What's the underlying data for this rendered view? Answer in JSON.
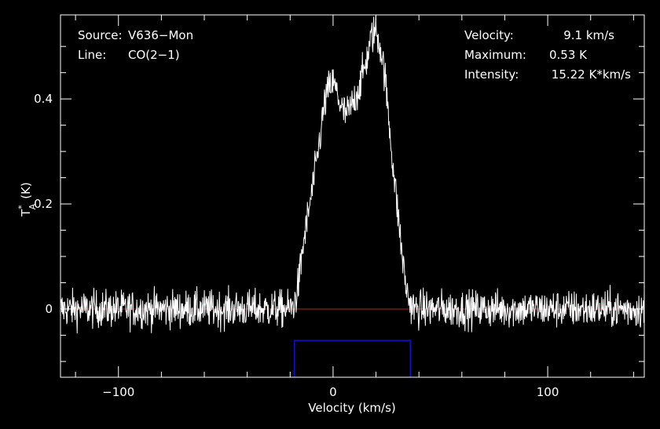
{
  "chart_data": {
    "type": "line",
    "xlabel": "Velocity (km/s)",
    "ylabel_main": "T",
    "ylabel_sup": "*",
    "ylabel_sub": "A",
    "ylabel_unit": "(K)",
    "xlim": [
      -127,
      145
    ],
    "ylim": [
      -0.13,
      0.56
    ],
    "x_ticks": [
      -100,
      0,
      100
    ],
    "x_tick_labels": [
      "−100",
      "0",
      "100"
    ],
    "y_ticks": [
      0,
      0.2,
      0.4
    ],
    "y_tick_labels": [
      "0",
      "0.2",
      "0.4"
    ],
    "baseline": 0,
    "window": {
      "x": [
        -18,
        36
      ],
      "y_top": -0.06
    },
    "series": [
      {
        "x": [
          -127,
          -110,
          -90,
          -70,
          -50,
          -30,
          -20,
          -18,
          -16,
          -14,
          -12,
          -10,
          -8,
          -6,
          -4,
          -2,
          0,
          2,
          4,
          6,
          8,
          10,
          12,
          14,
          16,
          18,
          20,
          22,
          24,
          26,
          28,
          30,
          32,
          34,
          36,
          38,
          40,
          60,
          80,
          100,
          120,
          145
        ],
        "values": [
          0,
          0,
          0,
          0,
          0,
          0,
          0,
          0.01,
          0.05,
          0.12,
          0.17,
          0.22,
          0.27,
          0.33,
          0.39,
          0.42,
          0.43,
          0.41,
          0.38,
          0.37,
          0.38,
          0.4,
          0.42,
          0.45,
          0.48,
          0.52,
          0.53,
          0.5,
          0.45,
          0.36,
          0.27,
          0.19,
          0.11,
          0.04,
          0.01,
          0,
          0,
          0,
          0,
          0,
          0,
          0
        ],
        "noise_rms": 0.025
      }
    ],
    "info_left": [
      {
        "key": "Source:",
        "value": "V636−Mon"
      },
      {
        "key": "Line:",
        "value": "CO(2−1)"
      }
    ],
    "info_right": [
      {
        "key": "Velocity:",
        "value": "9.1 km/s"
      },
      {
        "key": "Maximum:",
        "value": "0.53 K"
      },
      {
        "key": "Intensity:",
        "value": "15.22 K*km/s"
      }
    ]
  },
  "colors": {
    "background": "#000000",
    "spectrum": "#ffffff",
    "frame": "#ffffff",
    "baseline": "#b22222",
    "window": "#1010cc",
    "text": "#ffffff"
  }
}
